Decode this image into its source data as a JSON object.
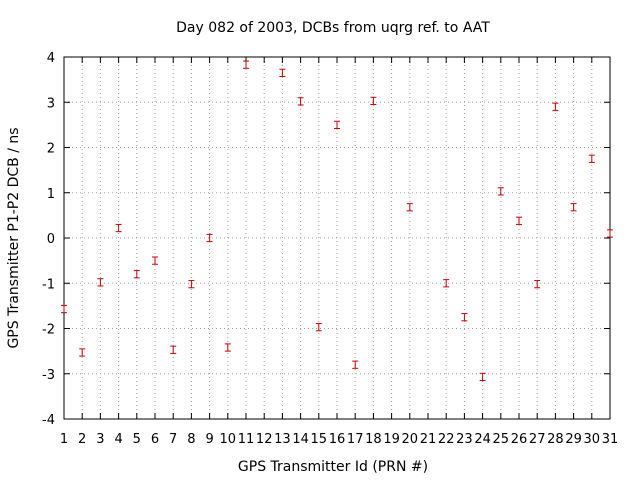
{
  "chart_data": {
    "type": "scatter",
    "title": "Day 082 of 2003, DCBs from uqrg ref. to AAT",
    "xlabel": "GPS Transmitter Id (PRN #)",
    "ylabel": "GPS Transmitter P1-P2 DCB / ns",
    "xlim": [
      1,
      31
    ],
    "ylim": [
      -4,
      4
    ],
    "x_ticks": [
      1,
      2,
      3,
      4,
      5,
      6,
      7,
      8,
      9,
      10,
      11,
      12,
      13,
      14,
      15,
      16,
      17,
      18,
      19,
      20,
      21,
      22,
      23,
      24,
      25,
      26,
      27,
      28,
      29,
      30,
      31
    ],
    "y_ticks": [
      -4,
      -3,
      -2,
      -1,
      0,
      1,
      2,
      3,
      4
    ],
    "grid": true,
    "legend": "none",
    "marker": "error-bar",
    "color": "#cc0000",
    "points": [
      {
        "x": 1,
        "y": -1.57,
        "err": 0.08
      },
      {
        "x": 2,
        "y": -2.53,
        "err": 0.08
      },
      {
        "x": 3,
        "y": -0.98,
        "err": 0.08
      },
      {
        "x": 4,
        "y": 0.22,
        "err": 0.08
      },
      {
        "x": 5,
        "y": -0.8,
        "err": 0.08
      },
      {
        "x": 6,
        "y": -0.5,
        "err": 0.08
      },
      {
        "x": 7,
        "y": -2.47,
        "err": 0.08
      },
      {
        "x": 8,
        "y": -1.02,
        "err": 0.08
      },
      {
        "x": 9,
        "y": 0.0,
        "err": 0.08
      },
      {
        "x": 10,
        "y": -2.42,
        "err": 0.08
      },
      {
        "x": 11,
        "y": 3.83,
        "err": 0.08
      },
      {
        "x": 13,
        "y": 3.65,
        "err": 0.08
      },
      {
        "x": 14,
        "y": 3.02,
        "err": 0.08
      },
      {
        "x": 15,
        "y": -1.97,
        "err": 0.08
      },
      {
        "x": 16,
        "y": 2.5,
        "err": 0.08
      },
      {
        "x": 17,
        "y": -2.8,
        "err": 0.08
      },
      {
        "x": 18,
        "y": 3.03,
        "err": 0.08
      },
      {
        "x": 20,
        "y": 0.68,
        "err": 0.08
      },
      {
        "x": 22,
        "y": -1.0,
        "err": 0.08
      },
      {
        "x": 23,
        "y": -1.75,
        "err": 0.08
      },
      {
        "x": 24,
        "y": -3.07,
        "err": 0.08
      },
      {
        "x": 25,
        "y": 1.03,
        "err": 0.08
      },
      {
        "x": 26,
        "y": 0.38,
        "err": 0.08
      },
      {
        "x": 27,
        "y": -1.02,
        "err": 0.08
      },
      {
        "x": 28,
        "y": 2.9,
        "err": 0.08
      },
      {
        "x": 29,
        "y": 0.68,
        "err": 0.08
      },
      {
        "x": 30,
        "y": 1.75,
        "err": 0.08
      },
      {
        "x": 31,
        "y": 0.1,
        "err": 0.08
      }
    ]
  }
}
